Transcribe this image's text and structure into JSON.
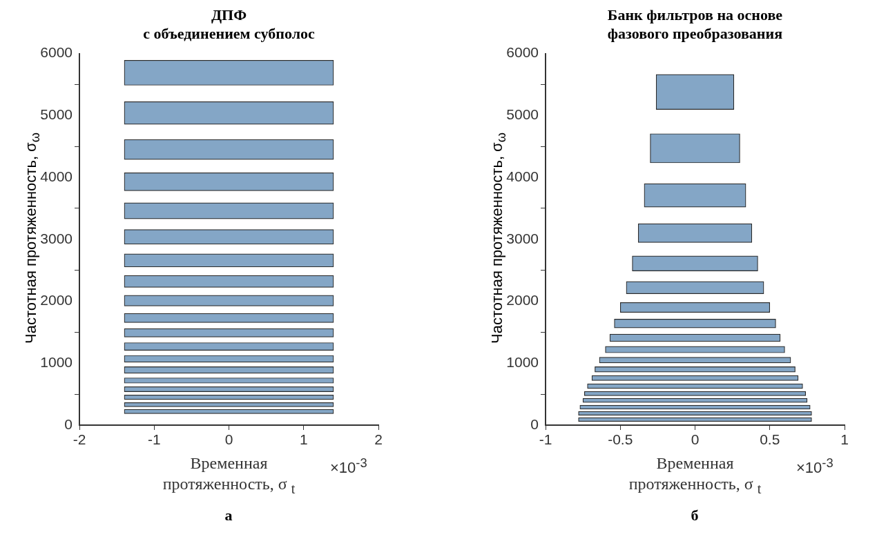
{
  "chart_data": [
    {
      "type": "bar",
      "orientation": "horizontal",
      "title": "ДПФ\nс объединением субполос",
      "xlabel": "Временная\nпротяженность, σ $_{t}$",
      "ylabel": "Частотная протяженность, σ$_{ω}$",
      "annotations": [
        "×10$^{-3}$",
        "а"
      ],
      "xlim": [
        -2,
        2
      ],
      "xticks": [
        -2,
        -1,
        0,
        1,
        2
      ],
      "ylim": [
        0,
        6000
      ],
      "yticks": [
        0,
        1000,
        2000,
        3000,
        4000,
        5000,
        6000
      ],
      "series": [
        {
          "color": "#84a6c6",
          "x": [
            5690,
            5040,
            4450,
            3930,
            3460,
            3040,
            2660,
            2320,
            2010,
            1730,
            1490,
            1270,
            1070,
            890,
            720,
            580,
            450,
            330,
            220
          ],
          "base": [
            -1.4,
            -1.4,
            -1.4,
            -1.4,
            -1.4,
            -1.4,
            -1.4,
            -1.4,
            -1.4,
            -1.4,
            -1.4,
            -1.4,
            -1.4,
            -1.4,
            -1.4,
            -1.4,
            -1.4,
            -1.4,
            -1.4
          ],
          "values": [
            2.8,
            2.8,
            2.8,
            2.8,
            2.8,
            2.8,
            2.8,
            2.8,
            2.8,
            2.8,
            2.8,
            2.8,
            2.8,
            2.8,
            2.8,
            2.8,
            2.8,
            2.8,
            2.8
          ]
        }
      ]
    },
    {
      "type": "bar",
      "orientation": "horizontal",
      "title": "Банк фильтров на основе\nфазового преобразования",
      "xlabel": "Временная\nпротяженность, σ $_{t}$",
      "ylabel": "Частотная протяженность, σ$_{ω}$",
      "annotations": [
        "×10$^{-3}$",
        "б"
      ],
      "xlim": [
        -1,
        1
      ],
      "xticks": [
        -1,
        -0.5,
        0,
        0.5,
        1
      ],
      "ylim": [
        0,
        6000
      ],
      "yticks": [
        0,
        1000,
        2000,
        3000,
        4000,
        5000,
        6000
      ],
      "series": [
        {
          "color": "#84a6c6",
          "x": [
            5380,
            4470,
            3710,
            3100,
            2610,
            2220,
            1900,
            1640,
            1410,
            1220,
            1050,
            900,
            760,
            630,
            510,
            400,
            290,
            190,
            90
          ],
          "base": [
            -0.26,
            -0.3,
            -0.34,
            -0.38,
            -0.42,
            -0.46,
            -0.5,
            -0.54,
            -0.57,
            -0.6,
            -0.64,
            -0.67,
            -0.69,
            -0.72,
            -0.74,
            -0.75,
            -0.77,
            -0.78,
            -0.78
          ],
          "values": [
            0.52,
            0.6,
            0.68,
            0.76,
            0.84,
            0.92,
            1,
            1.08,
            1.14,
            1.2,
            1.28,
            1.34,
            1.38,
            1.44,
            1.48,
            1.5,
            1.54,
            1.56,
            1.56
          ]
        }
      ]
    }
  ]
}
